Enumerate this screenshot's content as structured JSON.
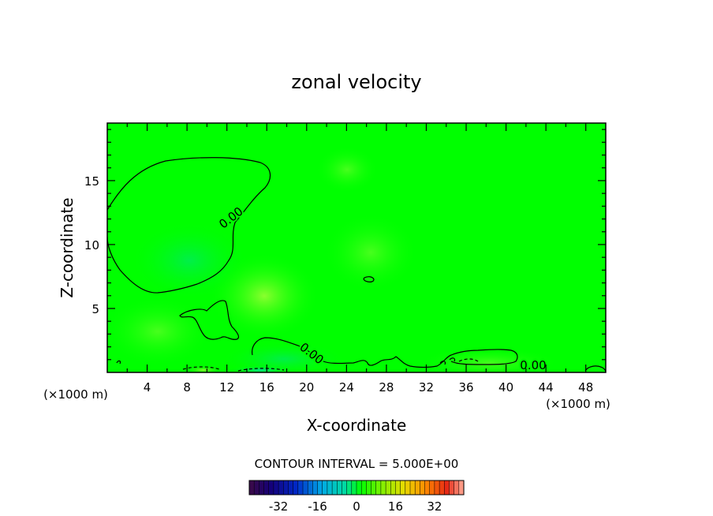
{
  "chart_data": {
    "type": "contour",
    "title": "zonal velocity",
    "xlabel": "X-coordinate",
    "ylabel": "Z-coordinate",
    "x_unit_left": "(×1000 m)",
    "x_unit_right": "(×1000 m)",
    "xlim": [
      0,
      50
    ],
    "ylim": [
      0,
      19.5
    ],
    "xticks": [
      4,
      8,
      12,
      16,
      20,
      24,
      28,
      32,
      36,
      40,
      44,
      48
    ],
    "yticks": [
      5,
      10,
      15
    ],
    "contour_labels": [
      "0.00",
      "0.00",
      "0.00"
    ],
    "contour_interval_text": "CONTOUR INTERVAL = 5.000E+00",
    "colorbar": {
      "min": -44,
      "max": 44,
      "ticks": [
        -32,
        -16,
        0,
        16,
        32
      ]
    },
    "field_color": "#00ff00"
  }
}
